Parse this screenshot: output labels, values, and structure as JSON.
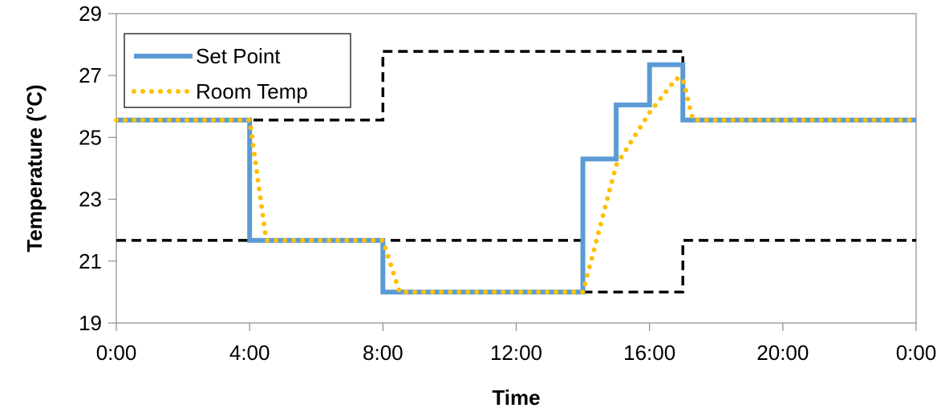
{
  "chart_data": {
    "type": "line",
    "xlabel": "Time",
    "ylabel": "Temperature (°C)",
    "xlim": [
      0,
      24
    ],
    "ylim": [
      19,
      29
    ],
    "x_ticks": [
      0,
      4,
      8,
      12,
      16,
      20,
      24
    ],
    "x_tick_labels": [
      "0:00",
      "4:00",
      "8:00",
      "12:00",
      "16:00",
      "20:00",
      "0:00"
    ],
    "y_ticks": [
      19,
      21,
      23,
      25,
      27,
      29
    ],
    "y_tick_labels": [
      "19",
      "21",
      "23",
      "25",
      "27",
      "29"
    ],
    "grid": false,
    "legend_position": "top-left",
    "series": [
      {
        "name": "Set Point",
        "color": "#5B9BD5",
        "style": "solid",
        "x": [
          0,
          4,
          4,
          8,
          8,
          14,
          14,
          15,
          15,
          16,
          16,
          17,
          17,
          24
        ],
        "y": [
          25.56,
          25.56,
          21.67,
          21.67,
          20.0,
          20.0,
          24.3,
          24.3,
          26.05,
          26.05,
          27.35,
          27.35,
          25.56,
          25.56
        ]
      },
      {
        "name": "Room Temp",
        "color": "#FFC000",
        "style": "dotted",
        "x": [
          0,
          4.0,
          4.5,
          8.0,
          8.5,
          14.0,
          15.0,
          16.0,
          16.8,
          17.0,
          17.3,
          24
        ],
        "y": [
          25.56,
          25.56,
          21.67,
          21.67,
          20.0,
          20.0,
          24.1,
          25.8,
          26.9,
          26.9,
          25.56,
          25.56
        ]
      },
      {
        "color": "#000000",
        "style": "dashed",
        "x": [
          0,
          8,
          8,
          17,
          17,
          24
        ],
        "y": [
          25.56,
          25.56,
          27.78,
          27.78,
          25.56,
          25.56
        ]
      },
      {
        "color": "#000000",
        "style": "dashed",
        "x": [
          0,
          14,
          14,
          17,
          17,
          24
        ],
        "y": [
          21.67,
          21.67,
          20.0,
          20.0,
          21.67,
          21.67
        ]
      }
    ]
  }
}
